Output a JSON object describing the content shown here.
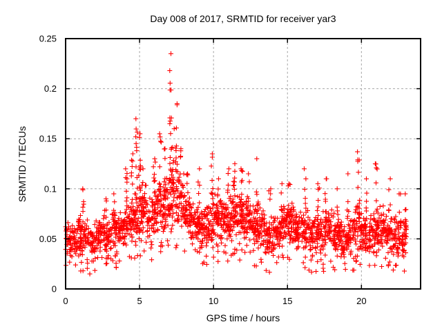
{
  "window": {
    "background": "#ffffff"
  },
  "chart_data": {
    "type": "scatter",
    "title": "Day 008 of 2017, SRMTID for receiver yar3",
    "xlabel": "GPS time / hours",
    "ylabel": "SRMTID / TECUs",
    "xlim": [
      0,
      24
    ],
    "ylim": [
      0,
      0.25
    ],
    "xticks": {
      "values": [
        0,
        5,
        10,
        15,
        20
      ],
      "labels": [
        "0",
        "5",
        "10",
        "15",
        "20"
      ]
    },
    "yticks": {
      "values": [
        0,
        0.05,
        0.1,
        0.15,
        0.2,
        0.25
      ],
      "labels": [
        "0",
        "0.05",
        "0.1",
        "0.15",
        "0.2",
        "0.25"
      ]
    },
    "grid": {
      "show": true,
      "style": "dashed",
      "color": "#a8a8a8"
    },
    "marker": {
      "shape": "plus",
      "color": "#ff0000",
      "size": 7
    },
    "series_name": "SRMTID",
    "data_extent": {
      "x_start": 0.0,
      "x_end": 23.05,
      "y_min": 0.015,
      "y_max": 0.235
    },
    "peak": {
      "x": 7.1,
      "y": 0.235
    },
    "sampling": {
      "seed": 20170108,
      "points_total_approx": 2600,
      "bins": [
        [
          0.0,
          0.5,
          48,
          0.03,
          0.068
        ],
        [
          0.5,
          1.0,
          48,
          0.03,
          0.072
        ],
        [
          1.0,
          1.5,
          48,
          0.03,
          0.075
        ],
        [
          1.5,
          2.0,
          48,
          0.022,
          0.068
        ],
        [
          2.0,
          2.5,
          48,
          0.03,
          0.072
        ],
        [
          2.5,
          3.0,
          48,
          0.026,
          0.075
        ],
        [
          3.0,
          3.5,
          48,
          0.034,
          0.08
        ],
        [
          3.5,
          4.0,
          48,
          0.035,
          0.085
        ],
        [
          4.0,
          4.5,
          48,
          0.04,
          0.09
        ],
        [
          4.5,
          5.0,
          48,
          0.04,
          0.105
        ],
        [
          5.0,
          5.5,
          48,
          0.045,
          0.11
        ],
        [
          5.5,
          6.0,
          48,
          0.04,
          0.095
        ],
        [
          6.0,
          6.5,
          48,
          0.05,
          0.11
        ],
        [
          6.5,
          7.0,
          48,
          0.05,
          0.115
        ],
        [
          7.0,
          7.5,
          48,
          0.05,
          0.13
        ],
        [
          7.5,
          8.0,
          48,
          0.05,
          0.12
        ],
        [
          8.0,
          8.5,
          48,
          0.045,
          0.1
        ],
        [
          8.5,
          9.0,
          48,
          0.04,
          0.09
        ],
        [
          9.0,
          9.5,
          48,
          0.038,
          0.088
        ],
        [
          9.5,
          10.0,
          48,
          0.035,
          0.085
        ],
        [
          10.0,
          10.5,
          48,
          0.04,
          0.1
        ],
        [
          10.5,
          11.0,
          48,
          0.04,
          0.092
        ],
        [
          11.0,
          11.5,
          48,
          0.04,
          0.1
        ],
        [
          11.5,
          12.0,
          48,
          0.04,
          0.1
        ],
        [
          12.0,
          12.5,
          48,
          0.04,
          0.098
        ],
        [
          12.5,
          13.0,
          48,
          0.035,
          0.09
        ],
        [
          13.0,
          13.5,
          48,
          0.035,
          0.088
        ],
        [
          13.5,
          14.0,
          44,
          0.025,
          0.075
        ],
        [
          14.0,
          14.5,
          46,
          0.035,
          0.08
        ],
        [
          14.5,
          15.0,
          48,
          0.04,
          0.085
        ],
        [
          15.0,
          15.5,
          48,
          0.04,
          0.088
        ],
        [
          15.5,
          16.0,
          48,
          0.035,
          0.082
        ],
        [
          16.0,
          16.5,
          48,
          0.03,
          0.08
        ],
        [
          16.5,
          17.0,
          46,
          0.025,
          0.075
        ],
        [
          17.0,
          17.5,
          48,
          0.03,
          0.08
        ],
        [
          17.5,
          18.0,
          48,
          0.035,
          0.085
        ],
        [
          18.0,
          18.5,
          48,
          0.03,
          0.078
        ],
        [
          18.5,
          19.0,
          48,
          0.03,
          0.075
        ],
        [
          19.0,
          19.5,
          48,
          0.03,
          0.08
        ],
        [
          19.5,
          20.0,
          48,
          0.035,
          0.09
        ],
        [
          20.0,
          20.5,
          48,
          0.035,
          0.082
        ],
        [
          20.5,
          21.0,
          48,
          0.03,
          0.078
        ],
        [
          21.0,
          21.5,
          48,
          0.035,
          0.088
        ],
        [
          21.5,
          22.0,
          48,
          0.03,
          0.076
        ],
        [
          22.0,
          22.5,
          48,
          0.03,
          0.078
        ],
        [
          22.5,
          23.0,
          48,
          0.03,
          0.072
        ],
        [
          23.0,
          23.05,
          8,
          0.04,
          0.085
        ]
      ],
      "spikes": [
        [
          1.2,
          0.07,
          0.1,
          6
        ],
        [
          2.7,
          0.06,
          0.09,
          5
        ],
        [
          3.3,
          0.06,
          0.095,
          6
        ],
        [
          4.1,
          0.07,
          0.12,
          8
        ],
        [
          4.5,
          0.08,
          0.135,
          8
        ],
        [
          4.8,
          0.09,
          0.17,
          12
        ],
        [
          5.0,
          0.09,
          0.155,
          10
        ],
        [
          5.3,
          0.07,
          0.12,
          6
        ],
        [
          6.0,
          0.08,
          0.13,
          8
        ],
        [
          6.4,
          0.09,
          0.155,
          10
        ],
        [
          6.7,
          0.08,
          0.14,
          8
        ],
        [
          7.1,
          0.1,
          0.235,
          16
        ],
        [
          7.3,
          0.09,
          0.16,
          8
        ],
        [
          7.5,
          0.1,
          0.185,
          10
        ],
        [
          7.8,
          0.08,
          0.14,
          6
        ],
        [
          8.2,
          0.07,
          0.115,
          6
        ],
        [
          9.0,
          0.07,
          0.12,
          6
        ],
        [
          9.9,
          0.08,
          0.135,
          10
        ],
        [
          10.3,
          0.07,
          0.11,
          6
        ],
        [
          11.0,
          0.07,
          0.12,
          8
        ],
        [
          11.4,
          0.08,
          0.125,
          8
        ],
        [
          11.9,
          0.07,
          0.12,
          8
        ],
        [
          12.4,
          0.07,
          0.115,
          6
        ],
        [
          12.9,
          0.07,
          0.13,
          6
        ],
        [
          13.8,
          0.06,
          0.1,
          5
        ],
        [
          14.6,
          0.06,
          0.105,
          5
        ],
        [
          15.1,
          0.06,
          0.105,
          6
        ],
        [
          16.2,
          0.06,
          0.12,
          6
        ],
        [
          17.1,
          0.06,
          0.105,
          5
        ],
        [
          17.6,
          0.06,
          0.11,
          6
        ],
        [
          18.4,
          0.055,
          0.1,
          5
        ],
        [
          19.1,
          0.06,
          0.115,
          6
        ],
        [
          19.8,
          0.07,
          0.137,
          9
        ],
        [
          20.3,
          0.06,
          0.11,
          5
        ],
        [
          21.0,
          0.065,
          0.125,
          8
        ],
        [
          21.9,
          0.06,
          0.11,
          6
        ],
        [
          22.6,
          0.055,
          0.095,
          5
        ],
        [
          23.0,
          0.055,
          0.095,
          4
        ]
      ]
    }
  }
}
